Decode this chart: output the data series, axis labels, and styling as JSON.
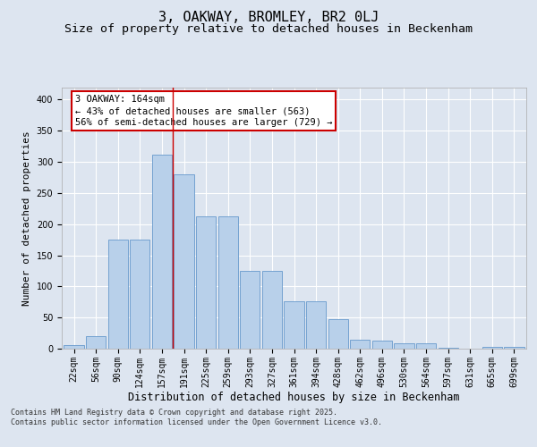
{
  "title1": "3, OAKWAY, BROMLEY, BR2 0LJ",
  "title2": "Size of property relative to detached houses in Beckenham",
  "xlabel": "Distribution of detached houses by size in Beckenham",
  "ylabel": "Number of detached properties",
  "categories": [
    "22sqm",
    "56sqm",
    "90sqm",
    "124sqm",
    "157sqm",
    "191sqm",
    "225sqm",
    "259sqm",
    "293sqm",
    "327sqm",
    "361sqm",
    "394sqm",
    "428sqm",
    "462sqm",
    "496sqm",
    "530sqm",
    "564sqm",
    "597sqm",
    "631sqm",
    "665sqm",
    "699sqm"
  ],
  "values": [
    6,
    20,
    175,
    175,
    312,
    280,
    213,
    213,
    125,
    125,
    76,
    76,
    48,
    14,
    13,
    8,
    8,
    2,
    0,
    3,
    3
  ],
  "bar_color": "#b8d0ea",
  "bar_edge_color": "#6699cc",
  "annotation_text": "3 OAKWAY: 164sqm\n← 43% of detached houses are smaller (563)\n56% of semi-detached houses are larger (729) →",
  "annotation_box_color": "#ffffff",
  "annotation_box_edge_color": "#cc0000",
  "vline_color": "#cc0000",
  "vline_x": 4.5,
  "background_color": "#dde5f0",
  "plot_bg_color": "#dde5f0",
  "footer_text": "Contains HM Land Registry data © Crown copyright and database right 2025.\nContains public sector information licensed under the Open Government Licence v3.0.",
  "ylim": [
    0,
    420
  ],
  "yticks": [
    0,
    50,
    100,
    150,
    200,
    250,
    300,
    350,
    400
  ],
  "title1_fontsize": 11,
  "title2_fontsize": 9.5,
  "xlabel_fontsize": 8.5,
  "ylabel_fontsize": 8,
  "tick_fontsize": 7,
  "annotation_fontsize": 7.5,
  "footer_fontsize": 6
}
